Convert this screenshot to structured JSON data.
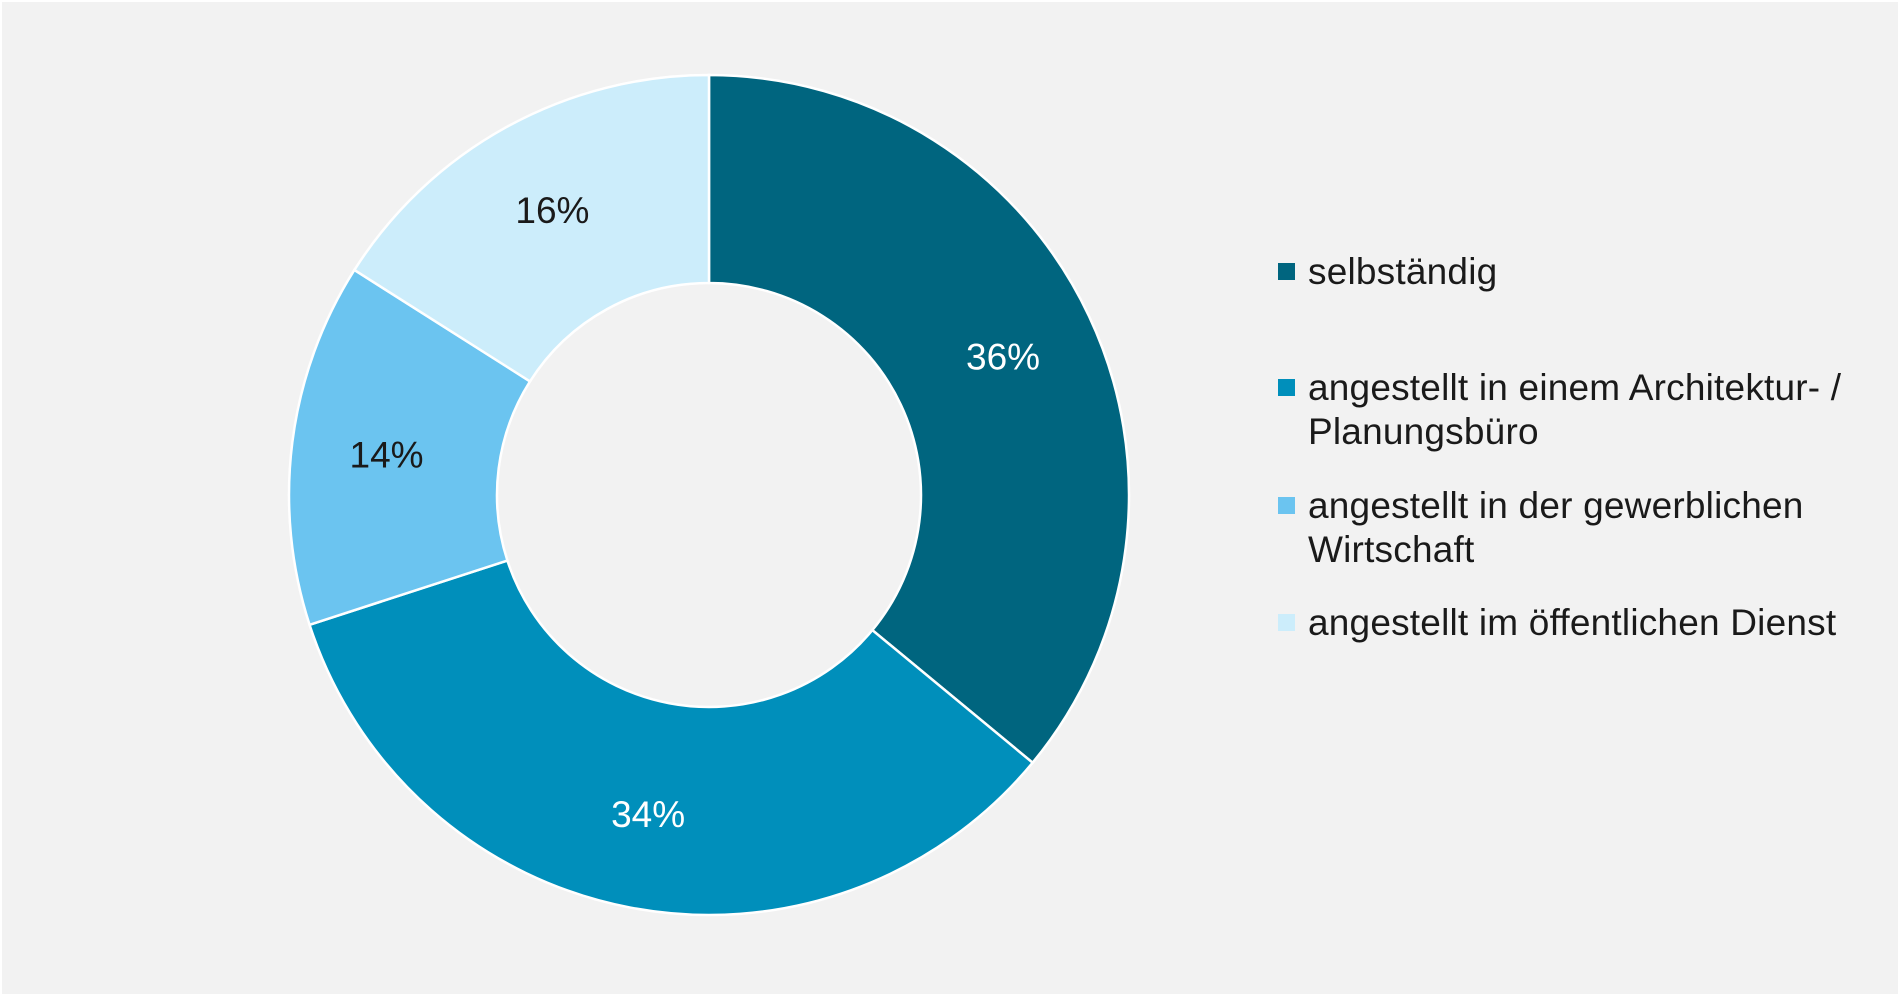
{
  "chart_data": {
    "type": "pie",
    "variant": "donut",
    "title": "",
    "categories": [
      "selbständig",
      "angestellt in einem Architektur- / Planungsbüro",
      "angestellt in der gewerblichen Wirtschaft",
      "angestellt im öffentlichen Dienst"
    ],
    "values": [
      36,
      34,
      14,
      16
    ],
    "value_labels": [
      "36%",
      "34%",
      "14%",
      "16%"
    ],
    "colors": [
      "#00657f",
      "#008fbb",
      "#6bc4f0",
      "#ccedfb"
    ],
    "label_colors": [
      "#ffffff",
      "#ffffff",
      "#1a1a1a",
      "#1a1a1a"
    ],
    "start_angle_deg": 0,
    "direction": "clockwise",
    "legend_position": "right",
    "background_color": "#f2f2f2"
  }
}
